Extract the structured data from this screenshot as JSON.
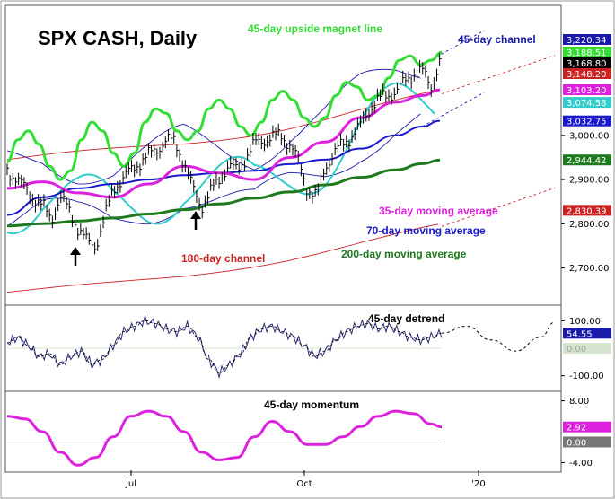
{
  "chart_title": "SPX CASH, Daily",
  "annotations": {
    "magnet": "45-day upside magnet line",
    "channel45": "45-day channel",
    "channel180": "180-day channel",
    "ma35": "35-day moving average",
    "ma70": "70-day moving average",
    "ma200": "200-day moving average",
    "detrend": "45-day detrend",
    "momentum": "45-day momentum"
  },
  "colors": {
    "magnet": "#33dd33",
    "channel45": "#1a1aaa",
    "channel180": "#cc2222",
    "ma35": "#dd22dd",
    "ma70": "#1a1acc",
    "ma200": "#1e7a1e",
    "cycle": "#33cccc",
    "detrend": "#2a2a7a",
    "momentum": "#dd22dd"
  },
  "chart_data": [
    {
      "type": "line",
      "title": "SPX CASH, Daily",
      "x_ticks": [
        "Jul",
        "Oct",
        "'20"
      ],
      "ylim": [
        2620,
        3290
      ],
      "y_ticks": [
        2700,
        2800,
        2900,
        3000
      ],
      "y_tick_labels": [
        "2,700.00",
        "2,800.00",
        "2,900.00",
        "3,000.00"
      ],
      "value_tags": [
        {
          "label": "3,220.34",
          "value": 3220.34,
          "color": "#1a1aaa",
          "text": "#ffffff"
        },
        {
          "label": "3,188.51",
          "value": 3188.51,
          "color": "#33dd33",
          "text": "#ffffff"
        },
        {
          "label": "3,168.80",
          "value": 3168.8,
          "color": "#000000",
          "text": "#ffffff"
        },
        {
          "label": "3,148.20",
          "value": 3148.2,
          "color": "#cc2222",
          "text": "#ffffff"
        },
        {
          "label": "3,103.20",
          "value": 3103.2,
          "color": "#dd22dd",
          "text": "#ffffff"
        },
        {
          "label": "3,074.58",
          "value": 3074.58,
          "color": "#33cccc",
          "text": "#ffffff"
        },
        {
          "label": "3,032.75",
          "value": 3032.75,
          "color": "#1a1acc",
          "text": "#ffffff"
        },
        {
          "label": "2,944.42",
          "value": 2944.42,
          "color": "#1e7a1e",
          "text": "#ffffff"
        },
        {
          "label": "2,830.39",
          "value": 2830.39,
          "color": "#cc2222",
          "text": "#ffffff"
        }
      ],
      "series": [
        {
          "name": "SPX CASH",
          "x": [
            0,
            10,
            20,
            30,
            40,
            50,
            60,
            70,
            80,
            90,
            100,
            110,
            120,
            130,
            140,
            150,
            160,
            170,
            180,
            190,
            200,
            210,
            220,
            230,
            240,
            250,
            260,
            270,
            280,
            290,
            300,
            310,
            320,
            330,
            340,
            350,
            360,
            370,
            380,
            390,
            400,
            410,
            420,
            430,
            440,
            450,
            460,
            470,
            480,
            490
          ],
          "values": [
            2920,
            2905,
            2880,
            2860,
            2840,
            2810,
            2860,
            2830,
            2790,
            2760,
            2750,
            2810,
            2880,
            2900,
            2920,
            2940,
            2955,
            2970,
            2990,
            2985,
            2940,
            2880,
            2840,
            2870,
            2900,
            2930,
            2920,
            2950,
            2980,
            2990,
            2995,
            3000,
            2980,
            2940,
            2880,
            2860,
            2930,
            2960,
            2980,
            3000,
            3020,
            3060,
            3080,
            3090,
            3100,
            3120,
            3140,
            3145,
            3110,
            3169
          ]
        },
        {
          "name": "45-day upside magnet line",
          "x": [
            0,
            12,
            24,
            36,
            48,
            60,
            72,
            84,
            96,
            108,
            120,
            132,
            144,
            156,
            168,
            180,
            192,
            204,
            216,
            228,
            240,
            252,
            264,
            276,
            288,
            300,
            312,
            324,
            336,
            348,
            360,
            372,
            384,
            396,
            408,
            420,
            432,
            444,
            456,
            468,
            480,
            492
          ],
          "values": [
            2940,
            2990,
            3010,
            2980,
            2930,
            2900,
            2920,
            2990,
            3030,
            3010,
            2960,
            2930,
            2960,
            3030,
            3060,
            3050,
            3010,
            2990,
            3010,
            3060,
            3080,
            3060,
            3020,
            3000,
            3030,
            3080,
            3100,
            3080,
            3040,
            3020,
            3040,
            3090,
            3120,
            3110,
            3080,
            3090,
            3130,
            3170,
            3180,
            3160,
            3170,
            3188
          ]
        },
        {
          "name": "35-day moving average",
          "x": [
            0,
            40,
            80,
            120,
            160,
            200,
            240,
            280,
            320,
            360,
            400,
            440,
            470,
            490
          ],
          "values": [
            2880,
            2895,
            2870,
            2860,
            2890,
            2930,
            2915,
            2900,
            2950,
            2985,
            3040,
            3075,
            3090,
            3103
          ]
        },
        {
          "name": "70-day moving average",
          "x": [
            0,
            40,
            80,
            120,
            160,
            200,
            240,
            280,
            320,
            360,
            400,
            440,
            470,
            490
          ],
          "values": [
            2820,
            2860,
            2880,
            2890,
            2900,
            2910,
            2915,
            2920,
            2935,
            2945,
            2970,
            3000,
            3020,
            3033
          ]
        },
        {
          "name": "200-day moving average",
          "x": [
            0,
            40,
            80,
            120,
            160,
            200,
            240,
            280,
            320,
            360,
            400,
            440,
            470,
            490
          ],
          "values": [
            2795,
            2800,
            2806,
            2813,
            2822,
            2832,
            2845,
            2858,
            2872,
            2888,
            2905,
            2922,
            2936,
            2944
          ]
        }
      ]
    },
    {
      "type": "line",
      "title": "45-day detrend",
      "ylim": [
        -150,
        150
      ],
      "y_ticks": [
        100,
        -100
      ],
      "y_tick_labels": [
        "100.00",
        "-100.00"
      ],
      "value_tags": [
        {
          "label": "54.55",
          "value": 54.55,
          "color": "#1a1aaa",
          "text": "#ffffff"
        },
        {
          "label": "0.00",
          "value": 0,
          "color": "#d6e4cf",
          "text": "#9aa89a"
        }
      ],
      "series": [
        {
          "name": "45-day detrend",
          "x": [
            0,
            12,
            24,
            36,
            48,
            60,
            72,
            84,
            96,
            108,
            120,
            132,
            144,
            156,
            168,
            180,
            192,
            204,
            216,
            228,
            240,
            252,
            264,
            276,
            288,
            300,
            312,
            324,
            336,
            348,
            360,
            372,
            384,
            396,
            408,
            420,
            432,
            444,
            456,
            468,
            480,
            492
          ],
          "values": [
            20,
            40,
            10,
            -30,
            -20,
            -60,
            -30,
            -10,
            -60,
            -40,
            10,
            60,
            80,
            100,
            90,
            70,
            60,
            80,
            40,
            -40,
            -90,
            -60,
            -20,
            40,
            70,
            80,
            60,
            40,
            10,
            -30,
            -10,
            30,
            60,
            80,
            90,
            70,
            80,
            60,
            40,
            30,
            40,
            55
          ]
        }
      ]
    },
    {
      "type": "line",
      "title": "45-day momentum",
      "ylim": [
        -5.5,
        9.5
      ],
      "y_ticks": [
        8,
        -4
      ],
      "y_tick_labels": [
        "8.00",
        "-4.00"
      ],
      "value_tags": [
        {
          "label": "2.92",
          "value": 2.92,
          "color": "#dd22dd",
          "text": "#ffffff"
        },
        {
          "label": "0.00",
          "value": 0,
          "color": "#777777",
          "text": "#ffffff"
        }
      ],
      "series": [
        {
          "name": "45-day momentum",
          "x": [
            0,
            20,
            40,
            60,
            80,
            100,
            120,
            140,
            160,
            180,
            200,
            220,
            240,
            260,
            280,
            300,
            320,
            340,
            360,
            380,
            400,
            420,
            440,
            460,
            480,
            492
          ],
          "values": [
            5,
            4.5,
            2,
            -2,
            -4.5,
            -3,
            1,
            5,
            6,
            5,
            2,
            -2,
            -3.5,
            -3,
            1,
            4,
            2,
            -0.5,
            -0.5,
            1,
            3,
            5,
            6,
            5.5,
            3.5,
            2.92
          ]
        }
      ]
    }
  ]
}
